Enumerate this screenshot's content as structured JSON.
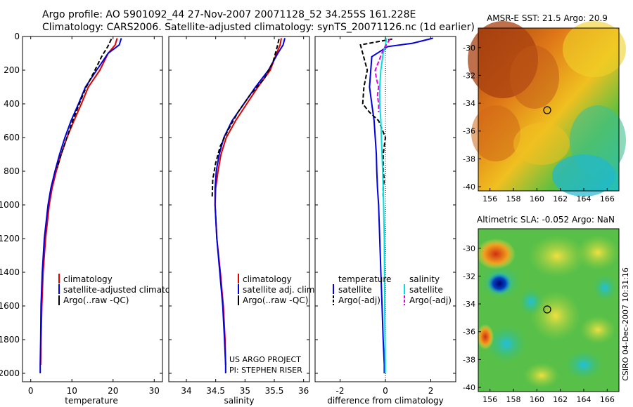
{
  "header": {
    "line1": "Argo profile: AO 5901092_44 27-Nov-2007 20071128_52 34.255S 161.228E",
    "line2": "Climatology: CARS2006. Satellite-adjusted climatology: synTS_20071126.nc (1d earlier)"
  },
  "side_label": "CSIRO 04-Dec-2007 10:31:16",
  "colors": {
    "climatology": "#e00000",
    "satellite": "#0000e0",
    "argo": "#000000",
    "sat_salinity": "#00e0e0",
    "argo_salinity": "#e000e0"
  },
  "chart_data": [
    {
      "type": "line",
      "xlabel": "temperature",
      "xlim": [
        -2,
        32
      ],
      "ylim": [
        2050,
        0
      ],
      "x_ticks": [
        0,
        10,
        20,
        30
      ],
      "y_ticks": [
        0,
        200,
        400,
        600,
        800,
        1000,
        1200,
        1400,
        1600,
        1800,
        2000
      ],
      "legend": [
        "climatology",
        "satellite-adjusted climatology",
        "Argo(..raw -QC)"
      ],
      "series": [
        {
          "name": "climatology",
          "style": "solid",
          "color": "#e00000",
          "x": [
            21.0,
            20.5,
            18.8,
            16.8,
            14.0,
            12.3,
            10.5,
            8.8,
            7.4,
            6.2,
            5.2,
            4.5,
            3.6,
            3.0,
            2.7,
            2.5,
            2.4
          ],
          "y": [
            10,
            50,
            100,
            200,
            300,
            400,
            500,
            600,
            700,
            800,
            900,
            1000,
            1200,
            1400,
            1600,
            1800,
            1950
          ]
        },
        {
          "name": "satellite-adjusted climatology",
          "style": "solid",
          "color": "#0000e0",
          "x": [
            22.0,
            21.5,
            18.8,
            16.0,
            13.3,
            11.6,
            9.8,
            8.3,
            7.0,
            5.9,
            4.9,
            4.2,
            3.3,
            2.8,
            2.5,
            2.4,
            2.3,
            2.3
          ],
          "y": [
            10,
            50,
            100,
            200,
            300,
            400,
            500,
            600,
            700,
            800,
            900,
            1000,
            1200,
            1400,
            1600,
            1800,
            1950,
            2000
          ]
        },
        {
          "name": "Argo(..raw -QC)",
          "style": "dash",
          "color": "#000000",
          "x": [
            19.6,
            18.7,
            17.2,
            15.6,
            13.5,
            11.8,
            10.2,
            8.8,
            7.4,
            6.4
          ],
          "y": [
            15,
            60,
            120,
            200,
            300,
            400,
            500,
            600,
            700,
            780
          ]
        }
      ]
    },
    {
      "type": "line",
      "xlabel": "salinity",
      "xlim": [
        33.7,
        36.1
      ],
      "ylim": [
        2050,
        0
      ],
      "x_ticks": [
        34,
        34.5,
        35,
        35.5,
        36
      ],
      "legend": [
        "climatology",
        "satellite adj. clim.",
        "Argo(..raw -QC)"
      ],
      "annotation": [
        "US ARGO PROJECT",
        "PI: STEPHEN RISER"
      ],
      "series": [
        {
          "name": "climatology",
          "style": "solid",
          "color": "#e00000",
          "x": [
            35.62,
            35.6,
            35.54,
            35.43,
            35.22,
            35.03,
            34.84,
            34.68,
            34.59,
            34.54,
            34.5,
            34.49,
            34.52,
            34.58,
            34.63,
            34.66,
            34.67
          ],
          "y": [
            10,
            50,
            100,
            200,
            300,
            400,
            500,
            600,
            700,
            800,
            900,
            1000,
            1200,
            1400,
            1600,
            1800,
            1950
          ]
        },
        {
          "name": "satellite adj. clim.",
          "style": "solid",
          "color": "#0000e0",
          "x": [
            35.68,
            35.65,
            35.56,
            35.4,
            35.18,
            34.98,
            34.78,
            34.64,
            34.56,
            34.51,
            34.49,
            34.49,
            34.52,
            34.57,
            34.62,
            34.65,
            34.67,
            34.67
          ],
          "y": [
            10,
            50,
            100,
            200,
            300,
            400,
            500,
            600,
            700,
            800,
            900,
            1000,
            1200,
            1400,
            1600,
            1800,
            1950,
            2000
          ]
        },
        {
          "name": "Argo(..raw -QC)",
          "style": "dash",
          "color": "#000000",
          "x": [
            35.58,
            35.55,
            35.48,
            35.33,
            35.08,
            34.88,
            34.72,
            34.58,
            34.5,
            34.45,
            34.44
          ],
          "y": [
            15,
            60,
            150,
            250,
            350,
            450,
            550,
            650,
            750,
            850,
            950
          ]
        }
      ]
    },
    {
      "type": "line",
      "xlabel": "difference from climatology",
      "xlim": [
        -3.1,
        3.1
      ],
      "ylim": [
        2050,
        0
      ],
      "x_ticks": [
        -2,
        0,
        2
      ],
      "legend_temperature": [
        "temperature",
        "satellite",
        "Argo(-adj)"
      ],
      "legend_salinity": [
        "salinity",
        "satellite",
        "Argo(-adj)"
      ],
      "series": [
        {
          "name": "satellite",
          "group": "temperature",
          "style": "solid",
          "color": "#0000e0",
          "x": [
            2.1,
            1.2,
            0.1,
            -0.6,
            -0.7,
            -0.6,
            -0.5,
            -0.45,
            -0.4,
            -0.38,
            -0.35,
            -0.3,
            -0.25,
            -0.2,
            -0.15,
            -0.1,
            -0.05,
            -0.05
          ],
          "y": [
            10,
            40,
            60,
            120,
            300,
            400,
            500,
            600,
            700,
            800,
            900,
            1000,
            1200,
            1400,
            1600,
            1800,
            1950,
            2000
          ]
        },
        {
          "name": "Argo(-adj)",
          "group": "temperature",
          "style": "dash",
          "color": "#000000",
          "x": [
            0.3,
            -1.1,
            -1.0,
            -0.8,
            -0.95,
            -1.0,
            -0.7,
            -0.3,
            0.0,
            -0.1,
            -0.1,
            -0.05,
            -0.1,
            -0.1
          ],
          "y": [
            15,
            50,
            100,
            200,
            300,
            400,
            450,
            500,
            600,
            700,
            800,
            850,
            900,
            950
          ]
        },
        {
          "name": "satellite",
          "group": "salinity",
          "style": "solid",
          "color": "#00e0e0",
          "x": [
            0.05,
            0.0,
            -0.1,
            -0.2,
            -0.25,
            -0.25,
            -0.2,
            -0.18,
            -0.15,
            -0.12,
            -0.1,
            -0.08,
            -0.05,
            -0.04,
            -0.03,
            -0.02,
            -0.01,
            -0.01
          ],
          "y": [
            10,
            50,
            100,
            200,
            300,
            400,
            500,
            600,
            700,
            800,
            900,
            1000,
            1200,
            1400,
            1600,
            1800,
            1950,
            2000
          ]
        },
        {
          "name": "Argo(-adj)",
          "group": "salinity",
          "style": "dash",
          "color": "#e000e0",
          "x": [
            0.2,
            -0.1,
            -0.3,
            -0.45,
            -0.4,
            -0.3,
            -0.35,
            -0.3,
            -0.3
          ],
          "y": [
            15,
            80,
            150,
            200,
            250,
            300,
            350,
            400,
            450
          ]
        }
      ]
    },
    {
      "type": "heatmap",
      "title": "AMSR-E SST: 21.5 Argo: 20.9",
      "x_ticks": [
        156,
        158,
        160,
        162,
        164,
        166
      ],
      "y_ticks": [
        -30,
        -32,
        -34,
        -36,
        -38,
        -40
      ],
      "xlim": [
        155,
        167
      ],
      "ylim": [
        -40.3,
        -28.6
      ],
      "argo_marker": [
        161.2,
        -34.26
      ]
    },
    {
      "type": "heatmap",
      "title": "Altimetric SLA: -0.052 Argo: NaN",
      "x_ticks": [
        156,
        158,
        160,
        162,
        164,
        166
      ],
      "y_ticks": [
        -30,
        -32,
        -34,
        -36,
        -38,
        -40
      ],
      "xlim": [
        155,
        167
      ],
      "ylim": [
        -40.3,
        -28.6
      ],
      "argo_marker": [
        161.2,
        -34.26
      ]
    }
  ]
}
